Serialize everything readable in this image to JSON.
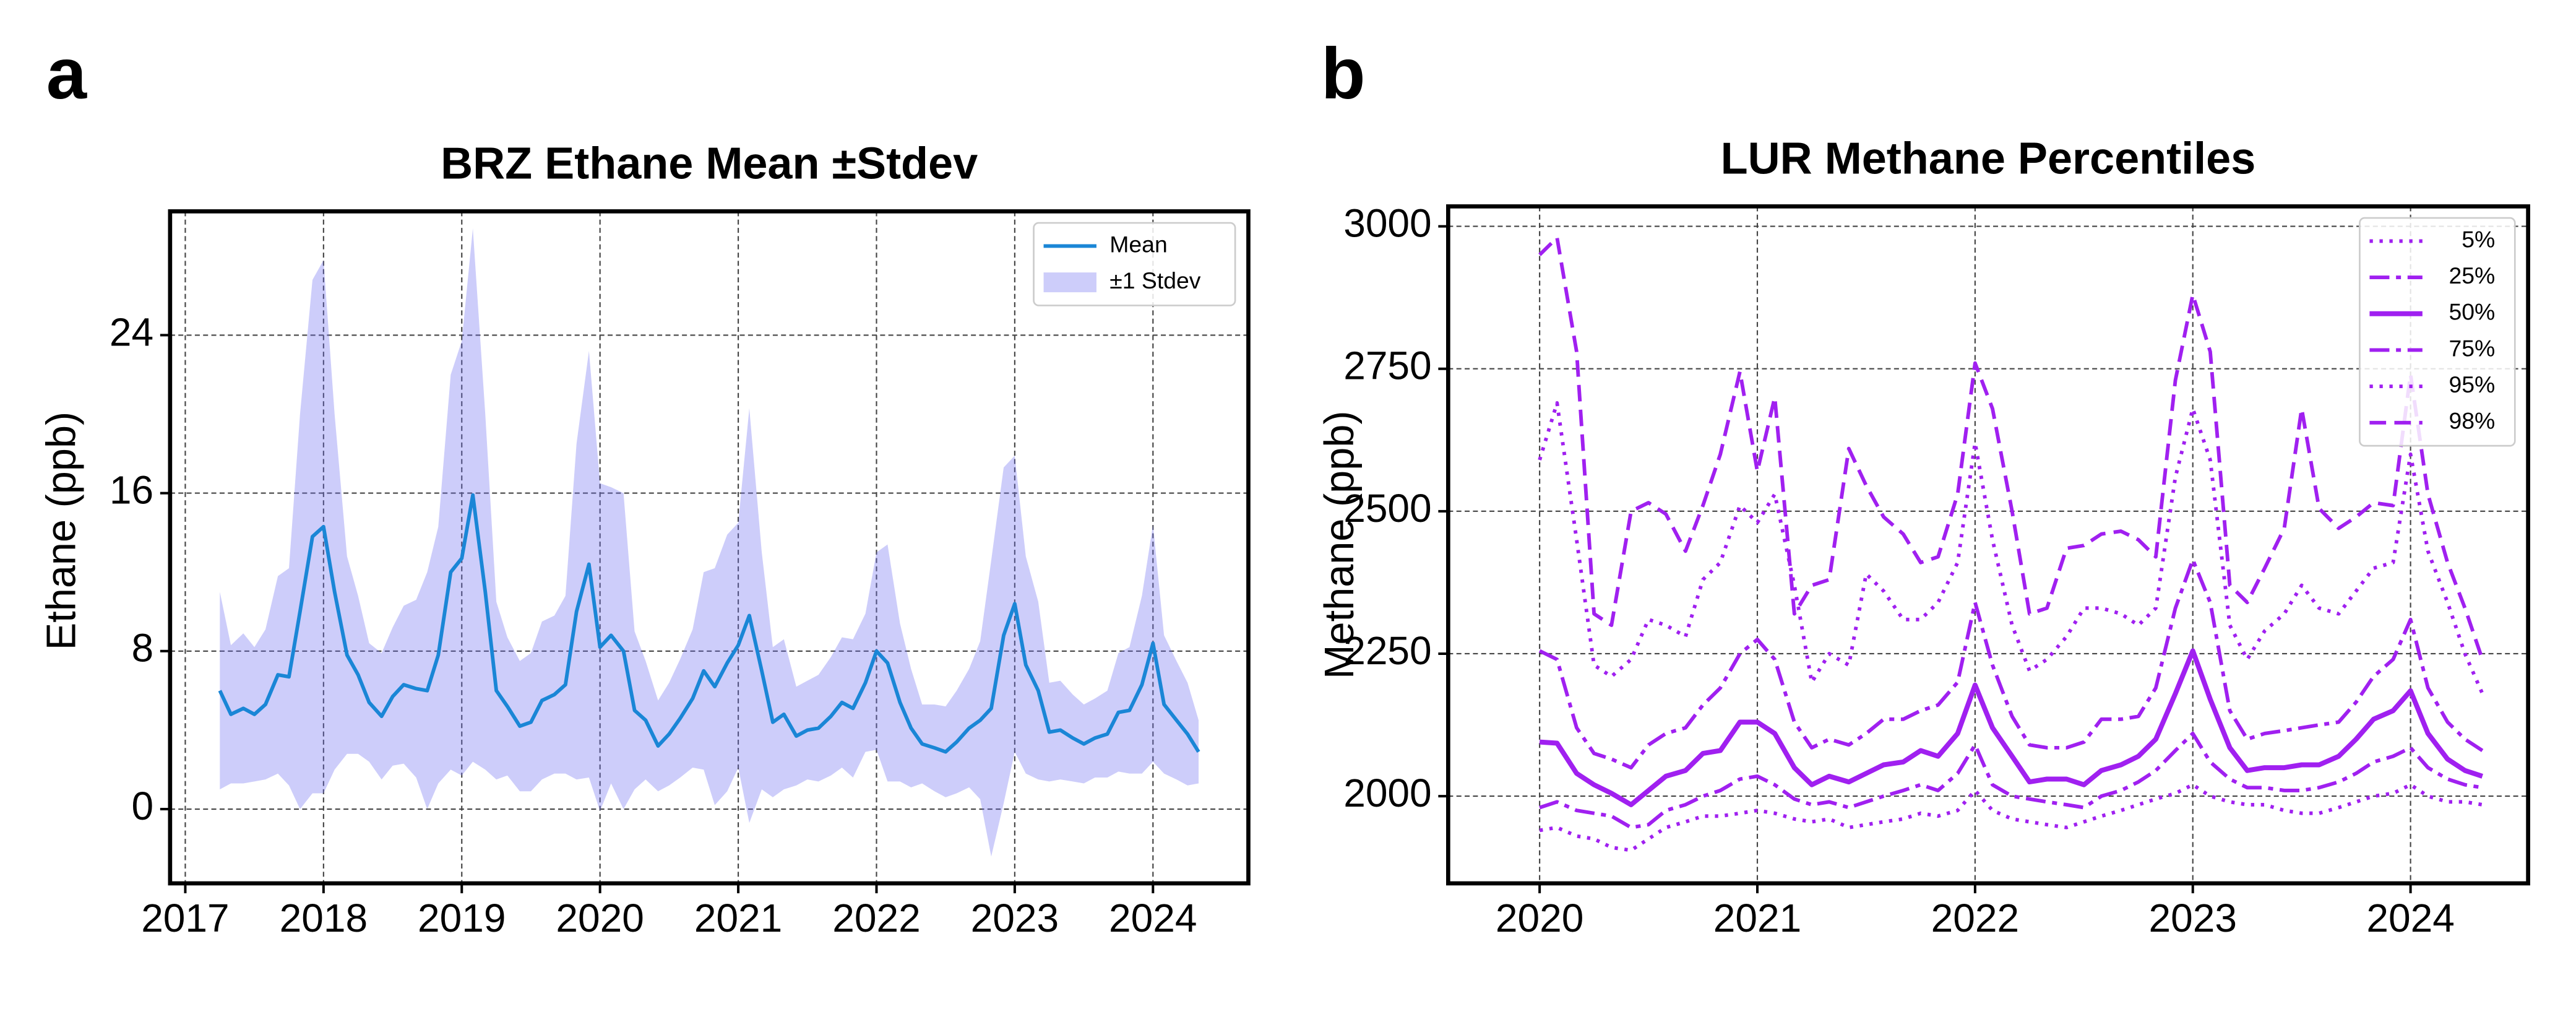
{
  "chart_data": [
    {
      "type": "line",
      "panel": "a",
      "title": "BRZ Ethane Mean ±Stdev",
      "ylabel": "Ethane (ppb)",
      "x": [
        2017.25,
        2017.33,
        2017.42,
        2017.5,
        2017.58,
        2017.67,
        2017.75,
        2017.83,
        2017.92,
        2018,
        2018.08,
        2018.17,
        2018.25,
        2018.33,
        2018.42,
        2018.5,
        2018.58,
        2018.67,
        2018.75,
        2018.83,
        2018.92,
        2019,
        2019.08,
        2019.17,
        2019.25,
        2019.33,
        2019.42,
        2019.5,
        2019.58,
        2019.67,
        2019.75,
        2019.83,
        2019.92,
        2020,
        2020.08,
        2020.17,
        2020.25,
        2020.33,
        2020.42,
        2020.5,
        2020.58,
        2020.67,
        2020.75,
        2020.83,
        2020.92,
        2021,
        2021.08,
        2021.17,
        2021.25,
        2021.33,
        2021.42,
        2021.5,
        2021.58,
        2021.67,
        2021.75,
        2021.83,
        2021.92,
        2022,
        2022.08,
        2022.17,
        2022.25,
        2022.33,
        2022.42,
        2022.5,
        2022.58,
        2022.67,
        2022.75,
        2022.83,
        2022.92,
        2023,
        2023.08,
        2023.17,
        2023.25,
        2023.33,
        2023.42,
        2023.5,
        2023.58,
        2023.67,
        2023.75,
        2023.83,
        2023.92,
        2024,
        2024.08,
        2024.17,
        2024.25,
        2024.33
      ],
      "series": [
        {
          "name": "Mean",
          "color": "#1a86d6",
          "values": [
            6.0,
            4.8,
            5.1,
            4.8,
            5.3,
            6.8,
            6.7,
            10,
            13.8,
            14.3,
            11,
            7.8,
            6.8,
            5.4,
            4.7,
            5.7,
            6.3,
            6.1,
            6.0,
            7.8,
            12,
            12.7,
            15.9,
            11,
            6.0,
            5.2,
            4.2,
            4.4,
            5.5,
            5.8,
            6.3,
            10.0,
            12.4,
            8.2,
            8.8,
            8.0,
            5.0,
            4.5,
            3.2,
            3.8,
            4.6,
            5.6,
            7.0,
            6.2,
            7.4,
            8.3,
            9.8,
            7.0,
            4.4,
            4.8,
            3.7,
            4.0,
            4.1,
            4.7,
            5.4,
            5.1,
            6.4,
            8.0,
            7.4,
            5.4,
            4.1,
            3.3,
            3.1,
            2.9,
            3.4,
            4.1,
            4.5,
            5.1,
            8.8,
            10.4,
            7.3,
            6.0,
            3.9,
            4.0,
            3.6,
            3.3,
            3.6,
            3.8,
            4.9,
            5.0,
            6.3,
            8.4,
            5.3,
            4.5,
            3.8,
            2.9
          ]
        }
      ],
      "band": {
        "name": "±1 Stdev",
        "color": "#7070f0",
        "values": [
          5,
          3.5,
          3.8,
          3.4,
          3.8,
          5,
          5.5,
          10,
          13,
          13.5,
          9,
          5,
          4,
          3,
          3.2,
          3.5,
          4,
          4.5,
          6,
          6.5,
          10,
          11,
          13.5,
          9,
          4.5,
          3.5,
          3.3,
          3.5,
          4,
          4,
          4.5,
          8.5,
          10.8,
          8.3,
          7.5,
          8,
          4,
          3,
          2.3,
          2.6,
          3,
          3.5,
          5,
          6,
          6.5,
          6.2,
          10.5,
          6,
          3.8,
          3.8,
          2.5,
          2.5,
          2.7,
          3,
          3.3,
          3.5,
          3.5,
          5,
          6,
          4,
          3,
          2,
          2.2,
          2.3,
          2.6,
          3,
          4,
          7.5,
          8.5,
          7.5,
          5.5,
          4.5,
          2.5,
          2.5,
          2.2,
          2,
          2,
          2.2,
          3,
          3.2,
          4.5,
          6,
          3.5,
          3,
          2.6,
          1.6
        ]
      },
      "xlim": [
        2016.89,
        2024.69
      ],
      "xticks": [
        2017,
        2018,
        2019,
        2020,
        2021,
        2022,
        2023,
        2024
      ],
      "ylim": [
        -3.76,
        30.27
      ],
      "yticks": [
        0,
        8,
        16,
        24
      ],
      "grid": true,
      "legend": "upper right"
    },
    {
      "type": "line",
      "panel": "b",
      "title": "LUR Methane Percentiles",
      "ylabel": "Methane (ppb)",
      "x": [
        2020,
        2020.08,
        2020.17,
        2020.25,
        2020.33,
        2020.42,
        2020.5,
        2020.58,
        2020.67,
        2020.75,
        2020.83,
        2020.92,
        2021,
        2021.08,
        2021.17,
        2021.25,
        2021.33,
        2021.42,
        2021.5,
        2021.58,
        2021.67,
        2021.75,
        2021.83,
        2021.92,
        2022,
        2022.08,
        2022.17,
        2022.25,
        2022.33,
        2022.42,
        2022.5,
        2022.58,
        2022.67,
        2022.75,
        2022.83,
        2022.92,
        2023,
        2023.08,
        2023.17,
        2023.25,
        2023.33,
        2023.42,
        2023.5,
        2023.58,
        2023.67,
        2023.75,
        2023.83,
        2023.92,
        2024,
        2024.08,
        2024.17,
        2024.25,
        2024.33
      ],
      "series": [
        {
          "name": "5%",
          "color": "#a020f0",
          "style": "dotted",
          "values": [
            1940,
            1945,
            1930,
            1925,
            1910,
            1905,
            1925,
            1945,
            1955,
            1965,
            1965,
            1970,
            1975,
            1970,
            1960,
            1955,
            1960,
            1945,
            1950,
            1955,
            1960,
            1970,
            1965,
            1975,
            2010,
            1975,
            1960,
            1955,
            1950,
            1945,
            1955,
            1965,
            1975,
            1985,
            1995,
            2005,
            2020,
            2000,
            1990,
            1985,
            1985,
            1975,
            1970,
            1970,
            1980,
            1990,
            2000,
            2005,
            2020,
            2000,
            1990,
            1990,
            1985
          ]
        },
        {
          "name": "25%",
          "color": "#a020f0",
          "style": "dashdot",
          "values": [
            1980,
            1990,
            1975,
            1970,
            1965,
            1945,
            1950,
            1975,
            1985,
            2000,
            2010,
            2030,
            2035,
            2020,
            1995,
            1985,
            1990,
            1980,
            1990,
            2000,
            2010,
            2020,
            2010,
            2040,
            2090,
            2020,
            2000,
            1995,
            1990,
            1985,
            1980,
            2000,
            2010,
            2025,
            2045,
            2080,
            2110,
            2060,
            2030,
            2015,
            2015,
            2010,
            2010,
            2015,
            2025,
            2040,
            2060,
            2070,
            2085,
            2050,
            2030,
            2020,
            2015
          ]
        },
        {
          "name": "50%",
          "color": "#a020f0",
          "style": "solid",
          "values": [
            2095,
            2093,
            2040,
            2020,
            2005,
            1985,
            2010,
            2035,
            2045,
            2075,
            2080,
            2130,
            2130,
            2110,
            2050,
            2020,
            2035,
            2025,
            2040,
            2055,
            2060,
            2080,
            2070,
            2110,
            2195,
            2120,
            2070,
            2025,
            2030,
            2030,
            2020,
            2045,
            2055,
            2070,
            2100,
            2180,
            2255,
            2170,
            2085,
            2045,
            2050,
            2050,
            2055,
            2055,
            2070,
            2100,
            2135,
            2150,
            2185,
            2110,
            2065,
            2045,
            2035
          ]
        },
        {
          "name": "75%",
          "color": "#a020f0",
          "style": "dashdot",
          "values": [
            2255,
            2240,
            2120,
            2075,
            2065,
            2050,
            2090,
            2110,
            2120,
            2160,
            2190,
            2250,
            2275,
            2240,
            2130,
            2085,
            2100,
            2090,
            2110,
            2135,
            2135,
            2150,
            2160,
            2200,
            2340,
            2230,
            2140,
            2090,
            2085,
            2085,
            2095,
            2135,
            2135,
            2140,
            2190,
            2330,
            2415,
            2340,
            2150,
            2100,
            2110,
            2115,
            2120,
            2125,
            2130,
            2165,
            2210,
            2240,
            2310,
            2190,
            2130,
            2100,
            2080
          ]
        },
        {
          "name": "95%",
          "color": "#a020f0",
          "style": "dotted",
          "values": [
            2590,
            2690,
            2450,
            2230,
            2210,
            2240,
            2310,
            2300,
            2280,
            2380,
            2410,
            2510,
            2480,
            2530,
            2370,
            2200,
            2250,
            2230,
            2390,
            2360,
            2310,
            2310,
            2340,
            2410,
            2620,
            2450,
            2300,
            2220,
            2240,
            2280,
            2330,
            2330,
            2320,
            2300,
            2330,
            2560,
            2680,
            2590,
            2300,
            2240,
            2290,
            2320,
            2370,
            2330,
            2320,
            2360,
            2400,
            2410,
            2600,
            2430,
            2340,
            2250,
            2180
          ]
        },
        {
          "name": "98%",
          "color": "#a020f0",
          "style": "dashed",
          "values": [
            2950,
            2980,
            2780,
            2320,
            2300,
            2500,
            2515,
            2495,
            2430,
            2510,
            2600,
            2745,
            2570,
            2700,
            2320,
            2370,
            2380,
            2610,
            2545,
            2490,
            2460,
            2410,
            2420,
            2530,
            2760,
            2680,
            2500,
            2320,
            2330,
            2435,
            2440,
            2460,
            2465,
            2450,
            2420,
            2730,
            2880,
            2780,
            2370,
            2340,
            2400,
            2470,
            2680,
            2505,
            2470,
            2490,
            2515,
            2510,
            2740,
            2530,
            2410,
            2330,
            2240
          ]
        }
      ],
      "xlim": [
        2019.58,
        2024.54
      ],
      "xticks": [
        2020,
        2021,
        2022,
        2023,
        2024
      ],
      "ylim": [
        1847,
        3035
      ],
      "yticks": [
        2000,
        2250,
        2500,
        2750,
        3000
      ],
      "grid": true,
      "legend": "upper right"
    }
  ]
}
